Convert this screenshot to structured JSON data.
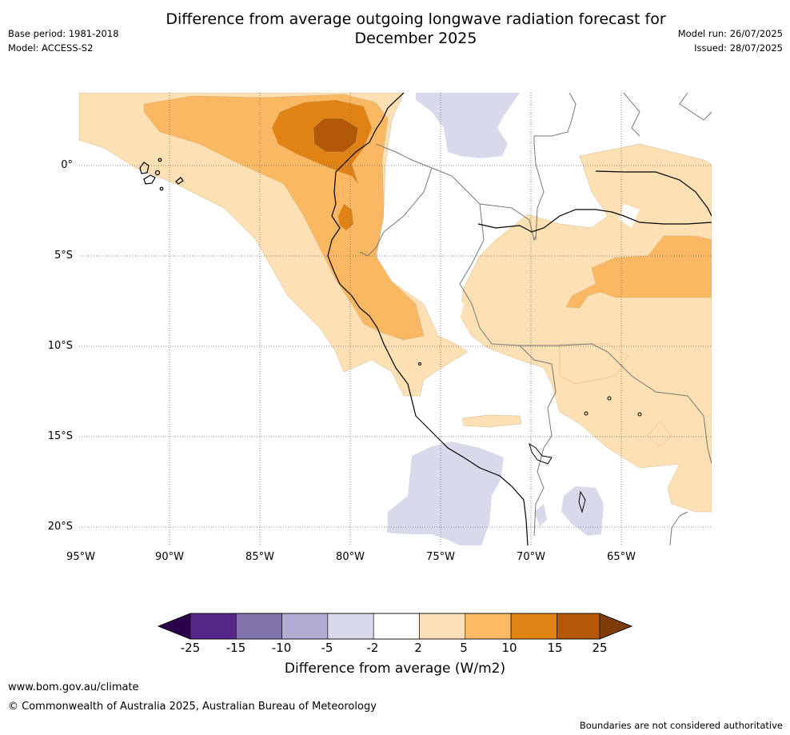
{
  "header": {
    "title_line1": "Difference from average outgoing longwave radiation forecast for",
    "title_line2": "December 2025",
    "base_period": "Base period: 1981-2018",
    "model": "Model: ACCESS-S2",
    "model_run": "Model run: 26/07/2025",
    "issued": "Issued: 28/07/2025"
  },
  "map": {
    "lat_labels": [
      "0°",
      "5°S",
      "10°S",
      "15°S",
      "20°S"
    ],
    "lon_labels": [
      "95°W",
      "90°W",
      "85°W",
      "80°W",
      "75°W",
      "70°W",
      "65°W"
    ],
    "colors": {
      "pos_2_5": "#fde0b3",
      "pos_5_10": "#fbb862",
      "pos_10_15": "#e08214",
      "pos_15_25": "#b35806",
      "neg_5_2": "#d8d9ea",
      "coast": "#000000",
      "borders": "#777777",
      "grid": "#666666"
    }
  },
  "colorbar": {
    "tick_labels": [
      "-25",
      "-15",
      "-10",
      "-5",
      "-2",
      "2",
      "5",
      "10",
      "15",
      "25"
    ],
    "colors": [
      "#2d004b",
      "#542788",
      "#8073ac",
      "#b2abd2",
      "#d8daeb",
      "#ffffff",
      "#fee0b6",
      "#fdb863",
      "#e08214",
      "#b35806",
      "#7f3b08"
    ],
    "title": "Difference from average (W/m2)"
  },
  "footer": {
    "website": "www.bom.gov.au/climate",
    "copyright": "© Commonwealth of Australia 2025, Australian Bureau of Meteorology",
    "disclaimer": "Boundaries are not considered authoritative"
  }
}
